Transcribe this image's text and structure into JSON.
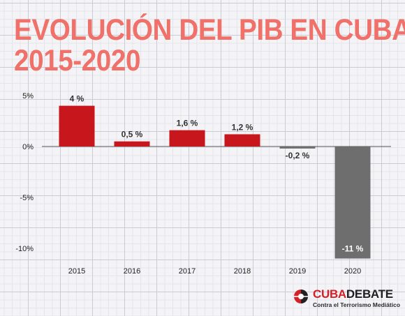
{
  "title_line1": "EVOLUCIÓN DEL PIB EN CUBA",
  "title_line2": "2015-2020",
  "title_color": "#f0706a",
  "chart_data": {
    "type": "bar",
    "categories": [
      "2015",
      "2016",
      "2017",
      "2018",
      "2019",
      "2020"
    ],
    "values": [
      4,
      0.5,
      1.6,
      1.2,
      -0.2,
      -11
    ],
    "labels": [
      "4 %",
      "0,5 %",
      "1,6 %",
      "1,2 %",
      "-0,2 %",
      "-11 %"
    ],
    "colors": [
      "#c8161d",
      "#c8161d",
      "#c8161d",
      "#c8161d",
      "#6e6e6e",
      "#6e6e6e"
    ],
    "yticks": [
      5,
      0,
      -5,
      -10
    ],
    "ytick_labels": [
      "5%",
      "0%",
      "-5%",
      "-10%"
    ],
    "ylim": [
      -11,
      5
    ],
    "grid": false
  },
  "logo": {
    "name_part1": "CUBA",
    "name_part2": "DEBATE",
    "tagline": "Contra el Terrorismo Mediático"
  }
}
